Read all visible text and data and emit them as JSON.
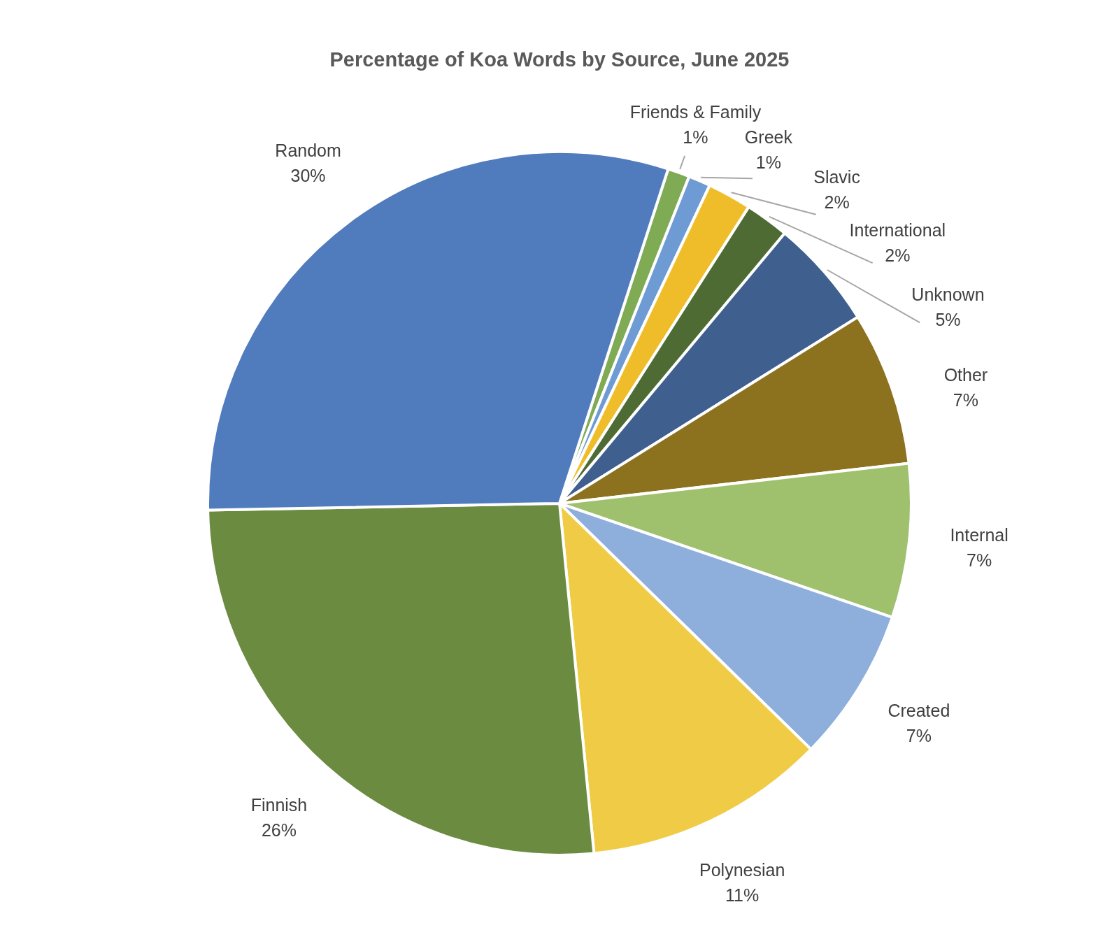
{
  "chart_data": {
    "type": "pie",
    "title": "Percentage of Koa Words by Source, June 2025",
    "categories": [
      "Friends & Family",
      "Greek",
      "Slavic",
      "International",
      "Unknown",
      "Other",
      "Internal",
      "Created",
      "Polynesian",
      "Finnish",
      "Random"
    ],
    "values": [
      1,
      1,
      2,
      2,
      5,
      7,
      7,
      7,
      11,
      26,
      30
    ],
    "colors": [
      "#7fab55",
      "#6f9bd4",
      "#f0bd2a",
      "#4e6b34",
      "#3f5f8e",
      "#8c711e",
      "#9fc16e",
      "#8eaedb",
      "#f0cb45",
      "#6b8b41",
      "#507bbd"
    ],
    "value_labels": [
      "1%",
      "1%",
      "2%",
      "2%",
      "5%",
      "7%",
      "7%",
      "7%",
      "11%",
      "26%",
      "30%"
    ],
    "legend": false
  }
}
